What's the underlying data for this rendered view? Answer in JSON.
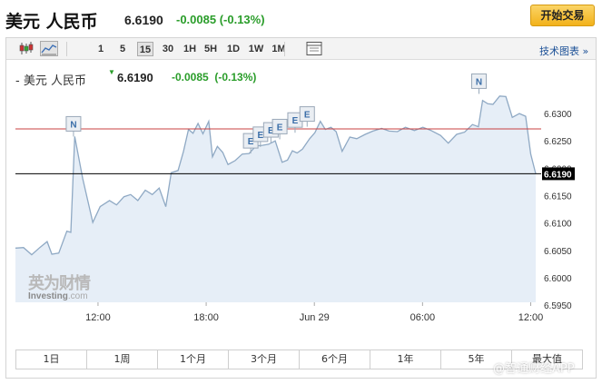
{
  "header": {
    "title": "美元 人民币",
    "price": "6.6190",
    "change": "-0.0085 (-0.13%)",
    "trade_button": "开始交易"
  },
  "toolbar": {
    "timeframes": [
      "1",
      "5",
      "15",
      "30",
      "1H",
      "5H",
      "1D",
      "1W",
      "1M"
    ],
    "active_timeframe": "15",
    "tech_chart_link": "技术图表 »"
  },
  "legend": {
    "name": "- 美元 人民币",
    "price": "6.6190",
    "change": "-0.0085",
    "change_pct": "(-0.13%)"
  },
  "watermark": {
    "brand_cn": "英为财情",
    "brand_en": "Investing",
    "brand_domain": ".com"
  },
  "ranges": [
    "1日",
    "1周",
    "1个月",
    "3个月",
    "6个月",
    "1年",
    "5年",
    "最大值"
  ],
  "corner_watermark": "@智通财经APP",
  "colors": {
    "line": "#8fa9c4",
    "area": "#e6eef7",
    "hline_red": "#c84040",
    "hline_black": "#000000",
    "positive_green": "#2a9d2a"
  },
  "chart_data": {
    "type": "area",
    "x_ticks": [
      {
        "label": "12:00",
        "t": 9
      },
      {
        "label": "18:00",
        "t": 15
      },
      {
        "label": "Jun 29",
        "t": 21
      },
      {
        "label": "06:00",
        "t": 27
      },
      {
        "label": "12:00",
        "t": 33
      }
    ],
    "x_range": [
      4.42,
      33.58
    ],
    "y_ticks": [
      "6.6300",
      "6.6250",
      "6.6200",
      "6.6150",
      "6.6100",
      "6.6050",
      "6.6000",
      "6.5950"
    ],
    "ylim": [
      6.5955,
      6.6345
    ],
    "hlines": [
      {
        "y": 6.6272,
        "color": "red"
      },
      {
        "y": 6.619,
        "color": "black",
        "label": "6.6190"
      }
    ],
    "points": [
      [
        4.42,
        6.6054
      ],
      [
        4.87,
        6.6055
      ],
      [
        5.32,
        6.6042
      ],
      [
        5.77,
        6.6055
      ],
      [
        6.18,
        6.6066
      ],
      [
        6.44,
        6.6043
      ],
      [
        6.82,
        6.6045
      ],
      [
        7.27,
        6.6085
      ],
      [
        7.49,
        6.6083
      ],
      [
        7.71,
        6.6258
      ],
      [
        8.15,
        6.6181
      ],
      [
        8.71,
        6.6101
      ],
      [
        9.12,
        6.613
      ],
      [
        9.64,
        6.6141
      ],
      [
        10.03,
        6.6133
      ],
      [
        10.44,
        6.6148
      ],
      [
        10.81,
        6.6152
      ],
      [
        11.21,
        6.6141
      ],
      [
        11.62,
        6.616
      ],
      [
        12.01,
        6.6152
      ],
      [
        12.39,
        6.6164
      ],
      [
        12.76,
        6.613
      ],
      [
        13.06,
        6.6192
      ],
      [
        13.44,
        6.6196
      ],
      [
        13.74,
        6.6231
      ],
      [
        14.02,
        6.6271
      ],
      [
        14.27,
        6.6264
      ],
      [
        14.55,
        6.6282
      ],
      [
        14.82,
        6.6263
      ],
      [
        15.14,
        6.6286
      ],
      [
        15.35,
        6.6221
      ],
      [
        15.62,
        6.624
      ],
      [
        15.92,
        6.6229
      ],
      [
        16.21,
        6.6207
      ],
      [
        16.61,
        6.6214
      ],
      [
        17.0,
        6.6226
      ],
      [
        17.38,
        6.6227
      ],
      [
        17.76,
        6.6241
      ],
      [
        18.11,
        6.6242
      ],
      [
        18.46,
        6.6244
      ],
      [
        18.83,
        6.625
      ],
      [
        19.21,
        6.6211
      ],
      [
        19.51,
        6.6215
      ],
      [
        19.78,
        6.6232
      ],
      [
        20.04,
        6.6228
      ],
      [
        20.34,
        6.6235
      ],
      [
        20.74,
        6.6254
      ],
      [
        21.03,
        6.6265
      ],
      [
        21.33,
        6.6286
      ],
      [
        21.61,
        6.6271
      ],
      [
        21.92,
        6.6275
      ],
      [
        22.21,
        6.6267
      ],
      [
        22.54,
        6.6231
      ],
      [
        22.97,
        6.6257
      ],
      [
        23.35,
        6.6254
      ],
      [
        23.82,
        6.6262
      ],
      [
        24.25,
        6.6268
      ],
      [
        24.73,
        6.6273
      ],
      [
        25.15,
        6.6268
      ],
      [
        25.61,
        6.6267
      ],
      [
        26.05,
        6.6275
      ],
      [
        26.55,
        6.6269
      ],
      [
        27.02,
        6.6275
      ],
      [
        27.48,
        6.6269
      ],
      [
        28.0,
        6.626
      ],
      [
        28.43,
        6.6246
      ],
      [
        28.89,
        6.6262
      ],
      [
        29.33,
        6.6266
      ],
      [
        29.77,
        6.628
      ],
      [
        30.1,
        6.6276
      ],
      [
        30.33,
        6.6324
      ],
      [
        30.62,
        6.6318
      ],
      [
        30.91,
        6.6317
      ],
      [
        31.28,
        6.6332
      ],
      [
        31.62,
        6.6331
      ],
      [
        31.98,
        6.6293
      ],
      [
        32.37,
        6.63
      ],
      [
        32.72,
        6.6295
      ],
      [
        33.0,
        6.6226
      ],
      [
        33.28,
        6.619
      ]
    ],
    "event_markers": [
      {
        "t": 7.64,
        "y": 6.6258,
        "label": "N"
      },
      {
        "t": 17.47,
        "y": 6.6227,
        "label": "E"
      },
      {
        "t": 18.01,
        "y": 6.6239,
        "label": "E"
      },
      {
        "t": 18.59,
        "y": 6.6247,
        "label": "E"
      },
      {
        "t": 19.08,
        "y": 6.6253,
        "label": "E"
      },
      {
        "t": 19.93,
        "y": 6.6265,
        "label": "E"
      },
      {
        "t": 20.6,
        "y": 6.6276,
        "label": "E"
      },
      {
        "t": 30.13,
        "y": 6.6336,
        "label": "N"
      }
    ]
  }
}
